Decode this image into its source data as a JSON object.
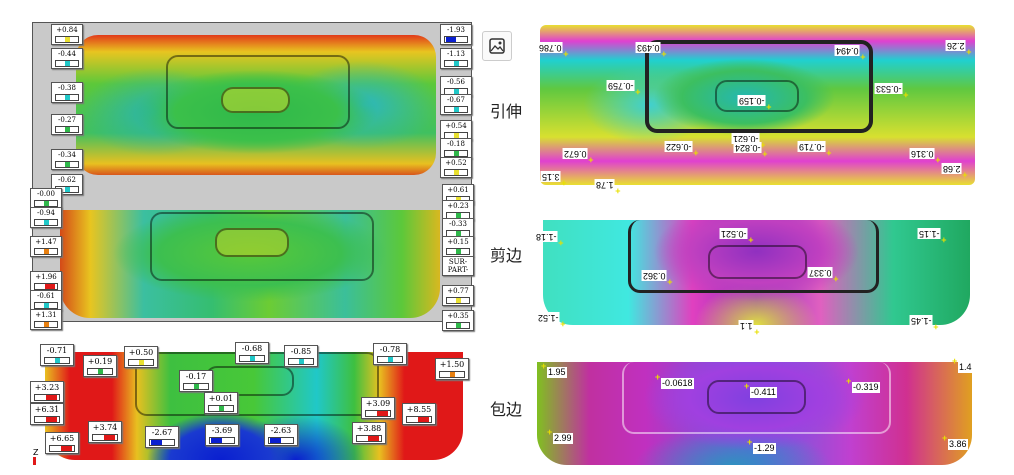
{
  "panels": {
    "stretch_label": "引伸",
    "trim_label": "剪边",
    "hem_label": "包边"
  },
  "icons": {
    "image": "image-icon",
    "axis": "z-axis-icon"
  },
  "axis_label": "Z",
  "left_top_callouts": [
    "+0.84",
    "-0.44",
    "-0.38",
    "-0.27",
    "-0.34",
    "-0.62",
    "-0.00",
    "-0.94",
    "+1.47",
    "+1.96",
    "-0.61",
    "+1.31",
    "-1.93",
    "-1.13",
    "-0.56",
    "-0.67",
    "+0.54",
    "-0.18",
    "+0.52",
    "+0.61",
    "+0.23",
    "-0.33",
    "+0.15",
    "SUR-PART-",
    "+0.77",
    "+0.35"
  ],
  "left_bottom_callouts": [
    "-0.71",
    "+0.19",
    "+0.50",
    "-0.68",
    "-0.85",
    "-0.78",
    "+1.50",
    "-0.17",
    "+0.01",
    "+3.23",
    "+6.31",
    "+6.65",
    "+3.74",
    "-2.67",
    "-3.69",
    "-2.63",
    "+3.09",
    "+8.55",
    "+3.88"
  ],
  "stretch_values": [
    "0.786",
    "0.493",
    "0.494",
    "2.26",
    "-0.759",
    "-0.159",
    "-0.533",
    "-0.622",
    "-0.621",
    "-0.824",
    "-0.719",
    "0.672",
    "0.316",
    "3.15",
    "1.78",
    "2.68"
  ],
  "trim_values": [
    "-1.18",
    "-0.521",
    "-1.15",
    "0.362",
    "0.337",
    "-1.52",
    "1.1",
    "-1.45"
  ],
  "hem_values": [
    "1.95",
    "-0.0618",
    "-0.411",
    "-0.319",
    "1.4",
    "2.99",
    "-1.29",
    "3.86"
  ],
  "colors": {
    "red": "#e01818",
    "green": "#2fb84a",
    "blue": "#0a1fd0",
    "cyan": "#20c8c8",
    "yellow": "#e8e030",
    "magenta": "#e040d0",
    "orange": "#e88010"
  }
}
